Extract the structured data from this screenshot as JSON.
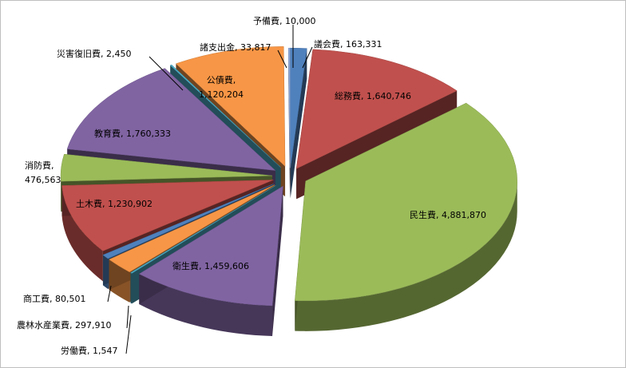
{
  "chart_data": {
    "type": "pie",
    "style": "3d-exploded",
    "title": "",
    "categories": [
      "議会費",
      "総務費",
      "民生費",
      "衛生費",
      "労働費",
      "農林水産業費",
      "商工費",
      "土木費",
      "消防費",
      "教育費",
      "災害復旧費",
      "公債費",
      "諸支出金",
      "予備費"
    ],
    "values": [
      163331,
      1640746,
      4881870,
      1459606,
      1547,
      297910,
      80501,
      1230902,
      476563,
      1760333,
      2450,
      1120204,
      33817,
      10000
    ],
    "value_labels": [
      "163,331",
      "1,640,746",
      "4,881,870",
      "1,459,606",
      "1,547",
      "297,910",
      "80,501",
      "1,230,902",
      "476,563",
      "1,760,333",
      "2,450",
      "1,120,204",
      "33,817",
      "10,000"
    ],
    "colors": [
      "#4f81bd",
      "#c0504d",
      "#9bbb59",
      "#8064a2",
      "#4bacc6",
      "#f79646",
      "#4f81bd",
      "#c0504d",
      "#9bbb59",
      "#8064a2",
      "#4bacc6",
      "#f79646",
      "#8ea9db",
      "#e6b9b8"
    ],
    "legend": "none",
    "grid": false
  }
}
